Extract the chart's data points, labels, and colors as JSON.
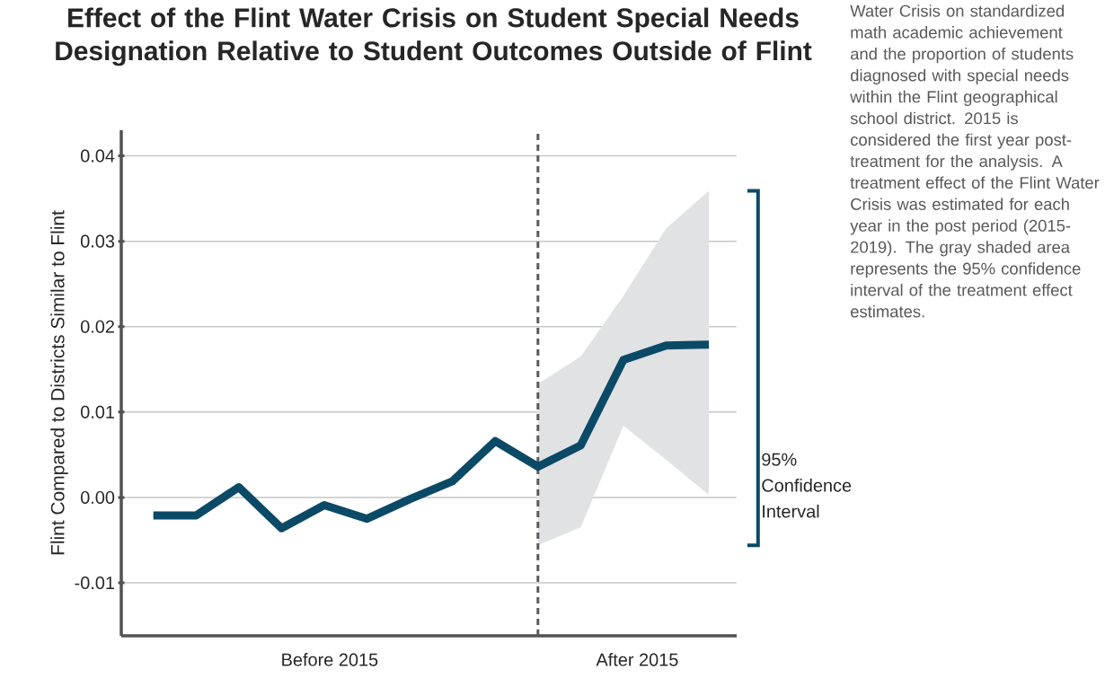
{
  "chart_data": {
    "type": "line",
    "title": "Effect of the Flint Water Crisis on Student Special Needs Designation Relative to Student Outcomes Outside of Flint",
    "ylabel": "Flint Compared to Districts Similar to Flint",
    "categories": [
      null,
      null,
      null,
      null,
      null,
      null,
      null,
      null,
      null,
      null,
      null,
      null,
      null,
      null
    ],
    "ylim": [
      -0.0162,
      0.043
    ],
    "yticks": [
      -0.01,
      {
        "value": 0,
        "label": "0.00"
      },
      0.01,
      0.02,
      0.03,
      0.04
    ],
    "series": [
      {
        "color": "#0b4a66",
        "values": [
          -0.0021,
          -0.0021,
          0.0012,
          -0.0036,
          -0.0009,
          -0.0025,
          -0.0002,
          0.0019,
          0.0066,
          0.0036,
          0.0061,
          0.0161,
          0.0178,
          0.0179
        ],
        "lower": [
          null,
          null,
          null,
          null,
          null,
          null,
          null,
          null,
          null,
          -0.0056,
          -0.0035,
          0.0084,
          0.0044,
          0.0003
        ],
        "upper": [
          null,
          null,
          null,
          null,
          null,
          null,
          null,
          null,
          null,
          0.0133,
          0.0165,
          0.0236,
          0.0315,
          0.0359
        ]
      }
    ],
    "ref_lines": [
      {
        "axis": "x",
        "color": "#5a5a5a",
        "line_style": "dashed"
      }
    ],
    "grid": "y",
    "marker": "none",
    "line_style": "solid",
    "annotations": [
      "Before 2015",
      "After 2015",
      "95% Confidence Interval",
      "Water Crisis on standardized math academic achievement and the proportion of students diagnosed with special needs within the Flint geographical school district. 2015 is considered the first year post-treatment for the analysis. A treatment effect of the Flint Water Crisis was estimated for each year in the post period (2015-2019). The gray shaded area represents the 95% confidence interval of the treatment effect estimates."
    ]
  }
}
